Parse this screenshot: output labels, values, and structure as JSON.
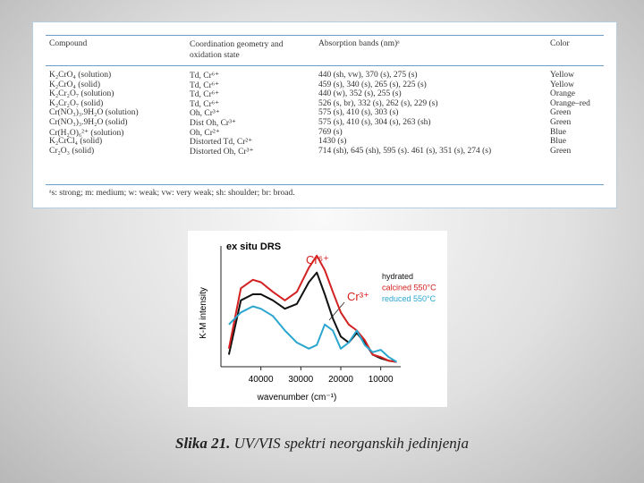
{
  "table": {
    "header": [
      "Compound",
      "Coordination geometry and oxidation state",
      "Absorption bands (nm)ᵃ",
      "Color"
    ],
    "rows": [
      [
        "K₂CrO₄ (solution)",
        "Td, Cr⁶⁺",
        "440 (sh, vw), 370 (s), 275 (s)",
        "Yellow"
      ],
      [
        "K₂CrO₄ (solid)",
        "Td, Cr⁶⁺",
        "459 (s), 340 (s), 265 (s), 225 (s)",
        "Yellow"
      ],
      [
        "K₂Cr₂O₇ (solution)",
        "Td, Cr⁶⁺",
        "440 (w), 352 (s), 255 (s)",
        "Orange"
      ],
      [
        "K₂Cr₂O₇ (solid)",
        "Td, Cr⁶⁺",
        "526 (s, br), 332 (s), 262 (s), 229 (s)",
        "Orange–red"
      ],
      [
        "Cr(NO₃)₃.9H₂O (solution)",
        "Oh, Cr³⁺",
        "575 (s), 410 (s), 303 (s)",
        "Green"
      ],
      [
        "Cr(NO₃)₃.9H₂O (solid)",
        "Dist Oh, Cr³⁺",
        "575 (s), 410 (s), 304 (s), 263 (sh)",
        "Green"
      ],
      [
        "Cr(H₂O)₆²⁺ (solution)",
        "Oh, Cr²⁺",
        "769 (s)",
        "Blue"
      ],
      [
        "K₂CrCl₄ (solid)",
        "Distorted Td, Cr²⁺",
        "1430 (s)",
        "Blue"
      ],
      [
        "Cr₂O₃ (solid)",
        "Distorted Oh, Cr³⁺",
        "714 (sh), 645 (sh), 595 (s). 461 (s), 351 (s), 274 (s)",
        "Green"
      ]
    ],
    "footnote": "ᵃs: strong; m: medium; w: weak; vw: very weak; sh: shoulder; br: broad."
  },
  "chart_data": {
    "type": "line",
    "title": "ex situ DRS",
    "x_label": "wavenumber (cm⁻¹)",
    "y_label": "K-M intensity",
    "annotations": [
      {
        "text": "Cr⁶⁺",
        "color": "#d42020"
      },
      {
        "text": "Cr³⁺",
        "color": "#d42020"
      }
    ],
    "x": [
      48000,
      45000,
      42000,
      40000,
      37000,
      34000,
      31000,
      28000,
      26000,
      24000,
      22000,
      20000,
      18000,
      16000,
      14000,
      12000,
      10000,
      8000,
      6000
    ],
    "xlim": [
      50000,
      5000
    ],
    "xticks": [
      40000,
      30000,
      20000,
      10000
    ],
    "ylim": [
      0,
      1
    ],
    "series": [
      {
        "name": "hydrated",
        "color": "#111111",
        "values": [
          0.1,
          0.55,
          0.6,
          0.6,
          0.55,
          0.48,
          0.52,
          0.7,
          0.78,
          0.6,
          0.4,
          0.25,
          0.2,
          0.28,
          0.2,
          0.1,
          0.07,
          0.05,
          0.04
        ]
      },
      {
        "name": "calcined 550°C",
        "color": "#d42020",
        "values": [
          0.15,
          0.65,
          0.72,
          0.7,
          0.62,
          0.55,
          0.62,
          0.82,
          0.92,
          0.8,
          0.62,
          0.45,
          0.35,
          0.3,
          0.22,
          0.1,
          0.08,
          0.05,
          0.04
        ]
      },
      {
        "name": "reduced 550°C",
        "color": "#2aa6cf",
        "values": [
          0.35,
          0.45,
          0.5,
          0.48,
          0.42,
          0.3,
          0.2,
          0.15,
          0.18,
          0.35,
          0.3,
          0.15,
          0.2,
          0.3,
          0.18,
          0.12,
          0.14,
          0.08,
          0.04
        ]
      }
    ]
  },
  "caption": {
    "label": "Slika 21.",
    "text": "UV/VIS spektri neorganskih jedinjenja"
  }
}
